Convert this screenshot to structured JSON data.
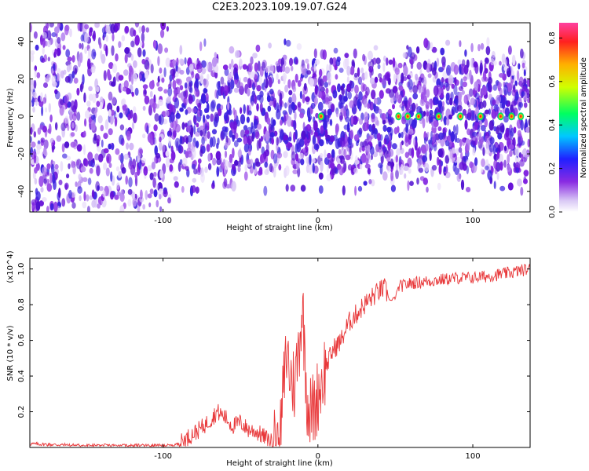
{
  "title": "C2E3.2023.109.19.07.G24",
  "chart_data": [
    {
      "type": "heatmap",
      "xlabel": "Height of straight line (km)",
      "ylabel": "Frequency (Hz)",
      "xlim": [
        -186,
        137
      ],
      "ylim": [
        -51,
        50
      ],
      "xticks": [
        -100,
        0,
        100
      ],
      "xtick_labels": [
        "-100",
        "0",
        "100"
      ],
      "yticks": [
        -40,
        -20,
        0,
        20,
        40
      ],
      "ytick_labels": [
        "-40",
        "-20",
        "0",
        "20",
        "40"
      ],
      "colorbar": {
        "label": "Normalized spectral amplitude",
        "range": [
          0,
          0.87
        ],
        "ticks": [
          0.0,
          0.2,
          0.4,
          0.6,
          0.8
        ],
        "tick_labels": [
          "0.0",
          "0.2",
          "0.4",
          "0.6",
          "0.8"
        ]
      },
      "bright_peaks_x": [
        2,
        52,
        58,
        65,
        78,
        92,
        105,
        118,
        125,
        131
      ]
    },
    {
      "type": "line",
      "xlabel": "Height of straight line (km)",
      "ylabel": "SNR (10 * v/v)",
      "y_multiplier": "(x10^4)",
      "xlim": [
        -186,
        137
      ],
      "ylim": [
        0,
        1.06
      ],
      "xticks": [
        -100,
        0,
        100
      ],
      "xtick_labels": [
        "-100",
        "0",
        "100"
      ],
      "yticks": [
        0.2,
        0.4,
        0.6,
        0.8,
        1.0
      ],
      "ytick_labels": [
        "0.2",
        "0.4",
        "0.6",
        "0.8",
        "1.0"
      ],
      "series": [
        {
          "color": "#e8383a",
          "x": [
            -186,
            -150,
            -120,
            -100,
            -95,
            -90,
            -85,
            -80,
            -75,
            -70,
            -65,
            -60,
            -55,
            -50,
            -45,
            -40,
            -35,
            -30,
            -25,
            -22,
            -20,
            -18,
            -15,
            -12,
            -10,
            -7,
            -5,
            -2,
            0,
            5,
            10,
            15,
            20,
            25,
            30,
            35,
            40,
            43,
            47,
            50,
            52,
            60,
            70,
            80,
            90,
            100,
            110,
            118,
            125,
            130,
            137
          ],
          "y": [
            0.02,
            0.01,
            0.01,
            0.01,
            0.01,
            0.02,
            0.05,
            0.08,
            0.11,
            0.15,
            0.2,
            0.17,
            0.12,
            0.14,
            0.1,
            0.09,
            0.06,
            0.03,
            0.02,
            0.35,
            0.55,
            0.4,
            0.35,
            0.6,
            0.8,
            0.28,
            0.2,
            0.22,
            0.3,
            0.45,
            0.55,
            0.6,
            0.7,
            0.75,
            0.8,
            0.84,
            0.88,
            0.89,
            0.82,
            0.84,
            0.9,
            0.92,
            0.93,
            0.94,
            0.95,
            0.95,
            0.96,
            0.97,
            0.98,
            0.99,
            1.0
          ]
        }
      ]
    }
  ]
}
